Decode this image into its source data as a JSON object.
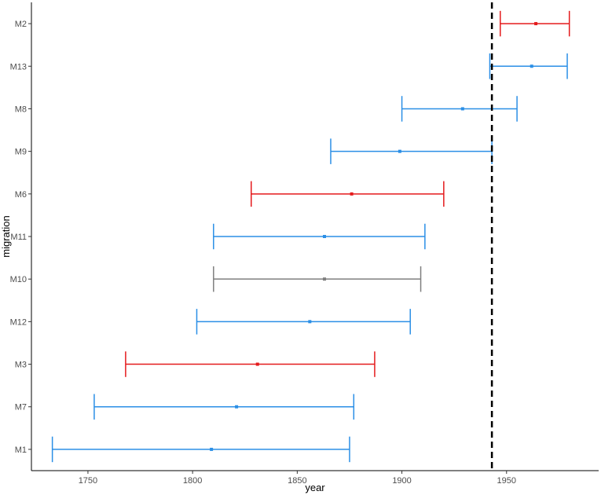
{
  "chart_data": {
    "type": "errorbar",
    "xlabel": "year",
    "ylabel": "migration",
    "xlim": [
      1723,
      1994
    ],
    "x_ticks": [
      1750,
      1800,
      1850,
      1900,
      1950
    ],
    "grid": false,
    "reference_line": {
      "x": 1943,
      "style": "dashed",
      "color": "#000000"
    },
    "colors": {
      "red": "#e41a1c",
      "blue": "#2b8fe6",
      "gray": "#7f7f7f"
    },
    "categories": [
      "M2",
      "M13",
      "M8",
      "M9",
      "M6",
      "M11",
      "M10",
      "M12",
      "M3",
      "M7",
      "M1"
    ],
    "points": [
      {
        "label": "M2",
        "estimate": 1964,
        "lower": 1947,
        "upper": 1980,
        "color": "red"
      },
      {
        "label": "M13",
        "estimate": 1962,
        "lower": 1942,
        "upper": 1979,
        "color": "blue"
      },
      {
        "label": "M8",
        "estimate": 1929,
        "lower": 1900,
        "upper": 1955,
        "color": "blue"
      },
      {
        "label": "M9",
        "estimate": 1899,
        "lower": 1866,
        "upper": 1943,
        "color": "blue"
      },
      {
        "label": "M6",
        "estimate": 1876,
        "lower": 1828,
        "upper": 1920,
        "color": "red"
      },
      {
        "label": "M11",
        "estimate": 1863,
        "lower": 1810,
        "upper": 1911,
        "color": "blue"
      },
      {
        "label": "M10",
        "estimate": 1863,
        "lower": 1810,
        "upper": 1909,
        "color": "gray"
      },
      {
        "label": "M12",
        "estimate": 1856,
        "lower": 1802,
        "upper": 1904,
        "color": "blue"
      },
      {
        "label": "M3",
        "estimate": 1831,
        "lower": 1768,
        "upper": 1887,
        "color": "red"
      },
      {
        "label": "M7",
        "estimate": 1821,
        "lower": 1753,
        "upper": 1877,
        "color": "blue"
      },
      {
        "label": "M1",
        "estimate": 1809,
        "lower": 1733,
        "upper": 1875,
        "color": "blue"
      }
    ]
  }
}
